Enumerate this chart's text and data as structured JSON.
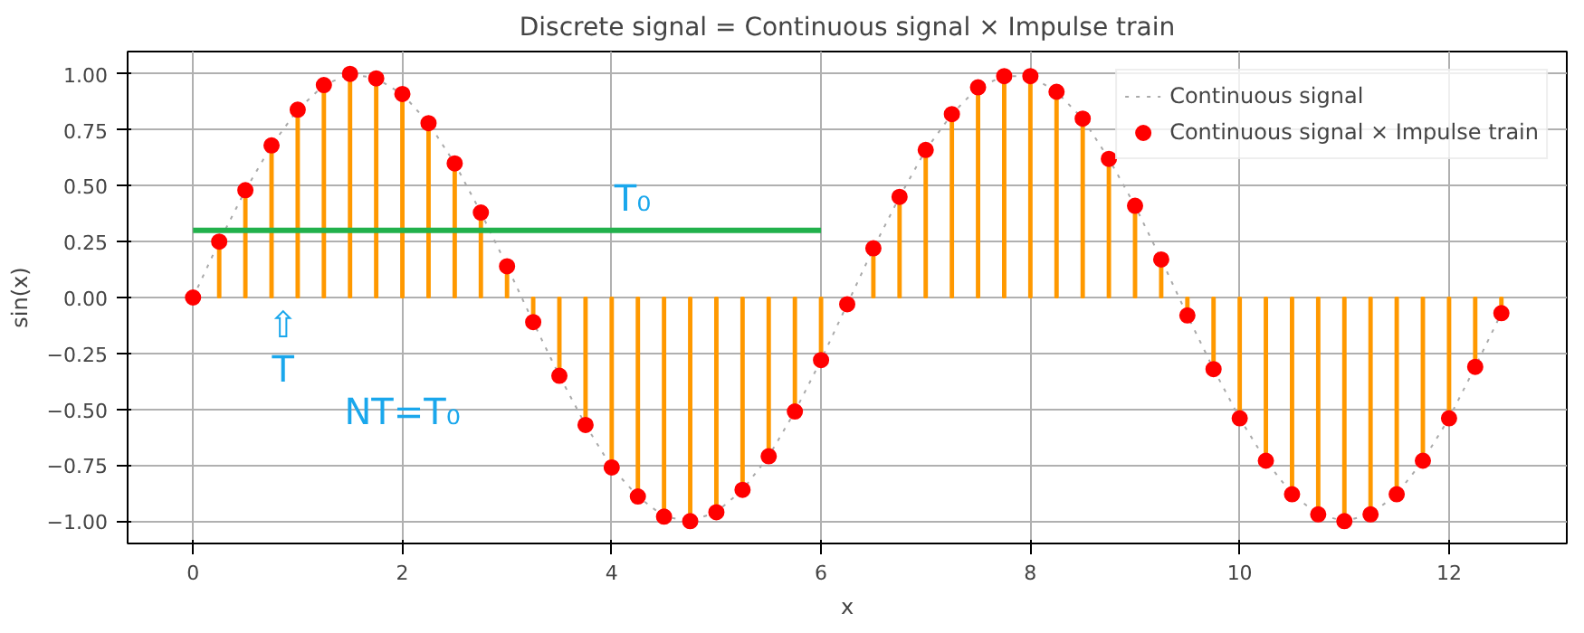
{
  "chart_data": {
    "type": "lollipop",
    "title": "Discrete signal = Continuous signal × Impulse train",
    "xlabel": "x",
    "ylabel": "sin(x)",
    "xlim": [
      -0.625,
      13.125
    ],
    "ylim": [
      -1.1,
      1.1
    ],
    "xticks": [
      0,
      2,
      4,
      6,
      8,
      10,
      12
    ],
    "yticks": [
      {
        "value": -1,
        "label": "−1.00"
      },
      {
        "value": -0.75,
        "label": "−0.75"
      },
      {
        "value": -0.5,
        "label": "−0.50"
      },
      {
        "value": -0.25,
        "label": "−0.25"
      },
      {
        "value": 0,
        "label": "0.00"
      },
      {
        "value": 0.25,
        "label": "0.25"
      },
      {
        "value": 0.5,
        "label": "0.50"
      },
      {
        "value": 0.75,
        "label": "0.75"
      },
      {
        "value": 1,
        "label": "1.00"
      }
    ],
    "grid": true,
    "legend": "top right",
    "x": [
      0,
      0.25,
      0.5,
      0.75,
      1,
      1.25,
      1.5,
      1.75,
      2,
      2.25,
      2.5,
      2.75,
      3,
      3.25,
      3.5,
      3.75,
      4,
      4.25,
      4.5,
      4.75,
      5,
      5.25,
      5.5,
      5.75,
      6,
      6.25,
      6.5,
      6.75,
      7,
      7.25,
      7.5,
      7.75,
      8,
      8.25,
      8.5,
      8.75,
      9,
      9.25,
      9.5,
      9.75,
      10,
      10.25,
      10.5,
      10.75,
      11,
      11.25,
      11.5,
      11.75,
      12,
      12.25,
      12.5
    ],
    "series": [
      {
        "name": "Continuous signal",
        "type": "line",
        "line_style": "dotted",
        "marker": "none",
        "color": "#aaaaaa",
        "values": [
          0,
          0.25,
          0.48,
          0.68,
          0.84,
          0.95,
          1.0,
          0.98,
          0.91,
          0.78,
          0.6,
          0.38,
          0.14,
          -0.11,
          -0.35,
          -0.57,
          -0.76,
          -0.89,
          -0.98,
          -1.0,
          -0.96,
          -0.86,
          -0.71,
          -0.51,
          -0.28,
          -0.03,
          0.22,
          0.45,
          0.66,
          0.82,
          0.94,
          0.99,
          0.99,
          0.92,
          0.8,
          0.62,
          0.41,
          0.17,
          -0.08,
          -0.32,
          -0.54,
          -0.73,
          -0.88,
          -0.97,
          -1.0,
          -0.97,
          -0.88,
          -0.73,
          -0.54,
          -0.31,
          -0.07
        ]
      },
      {
        "name": "Continuous signal × Impulse train",
        "marker": "circle",
        "color": "#ff9900",
        "colors": [
          "#ff0000",
          "#ff0000",
          "#ff0000",
          "#ff0000",
          "#ff0000",
          "#ff0000",
          "#ff0000",
          "#ff0000",
          "#ff0000",
          "#ff0000",
          "#ff0000",
          "#ff0000",
          "#ff0000",
          "#ff0000",
          "#ff0000",
          "#ff0000",
          "#ff0000",
          "#ff0000",
          "#ff0000",
          "#ff0000",
          "#ff0000",
          "#ff0000",
          "#ff0000",
          "#ff0000",
          "#ff0000",
          "#ff0000",
          "#ff0000",
          "#ff0000",
          "#ff0000",
          "#ff0000",
          "#ff0000",
          "#ff0000",
          "#ff0000",
          "#ff0000",
          "#ff0000",
          "#ff0000",
          "#ff0000",
          "#ff0000",
          "#ff0000",
          "#ff0000",
          "#ff0000",
          "#ff0000",
          "#ff0000",
          "#ff0000",
          "#ff0000",
          "#ff0000",
          "#ff0000",
          "#ff0000",
          "#ff0000",
          "#ff0000",
          "#ff0000"
        ],
        "values": [
          0,
          0.25,
          0.48,
          0.68,
          0.84,
          0.95,
          1.0,
          0.98,
          0.91,
          0.78,
          0.6,
          0.38,
          0.14,
          -0.11,
          -0.35,
          -0.57,
          -0.76,
          -0.89,
          -0.98,
          -1.0,
          -0.96,
          -0.86,
          -0.71,
          -0.51,
          -0.28,
          -0.03,
          0.22,
          0.45,
          0.66,
          0.82,
          0.94,
          0.99,
          0.99,
          0.92,
          0.8,
          0.62,
          0.41,
          0.17,
          -0.08,
          -0.32,
          -0.54,
          -0.73,
          -0.88,
          -0.97,
          -1.0,
          -0.97,
          -0.88,
          -0.73,
          -0.54,
          -0.31,
          -0.07
        ]
      },
      {
        "type": "line",
        "line_style": "solid",
        "marker": "none",
        "color": "#22b14c",
        "x": [
          0,
          6
        ],
        "values": [
          0.3,
          0.3
        ]
      }
    ],
    "annotations": [
      {
        "text": "T₀",
        "x": 4.2,
        "y": 0.3
      },
      "⇧",
      "T",
      "NT=T₀"
    ]
  }
}
